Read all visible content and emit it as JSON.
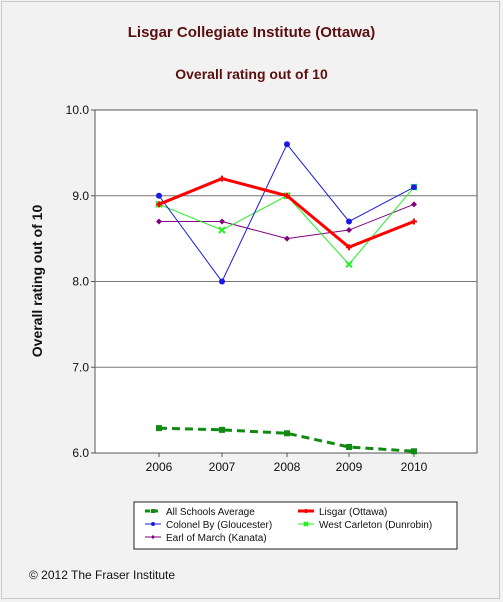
{
  "title": "Lisgar Collegiate Institute (Ottawa)",
  "subtitle": "Overall rating out of 10",
  "footer": "© 2012 The Fraser Institute",
  "chart_data": {
    "type": "line",
    "x": [
      2006,
      2007,
      2008,
      2009,
      2010
    ],
    "ylabel": "Overall rating out of 10",
    "ylim": [
      6.0,
      10.0
    ],
    "yticks": [
      "6.0",
      "7.0",
      "8.0",
      "9.0",
      "10.0"
    ],
    "xticks": [
      "2006",
      "2007",
      "2008",
      "2009",
      "2010"
    ],
    "grid": true,
    "legend_position": "bottom",
    "series": [
      {
        "name": "All Schools Average",
        "values": [
          6.29,
          6.27,
          6.23,
          6.07,
          6.02
        ],
        "color": "#118a11",
        "marker": "square",
        "dashed": true
      },
      {
        "name": "Lisgar (Ottawa)",
        "values": [
          8.9,
          9.2,
          9.0,
          8.4,
          8.7
        ],
        "color": "#ff0000",
        "marker": "cross",
        "dashed": false
      },
      {
        "name": "Colonel By (Gloucester)",
        "values": [
          9.0,
          8.0,
          9.6,
          8.7,
          9.1
        ],
        "color": "#1a1ae6",
        "marker": "circle",
        "dashed": false
      },
      {
        "name": "West Carleton (Dunrobin)",
        "values": [
          8.9,
          8.6,
          9.0,
          8.2,
          9.1
        ],
        "color": "#22ee22",
        "marker": "x",
        "dashed": false
      },
      {
        "name": "Earl of March (Kanata)",
        "values": [
          8.7,
          8.7,
          8.5,
          8.6,
          8.9
        ],
        "color": "#800080",
        "marker": "diamond",
        "dashed": false
      }
    ]
  }
}
